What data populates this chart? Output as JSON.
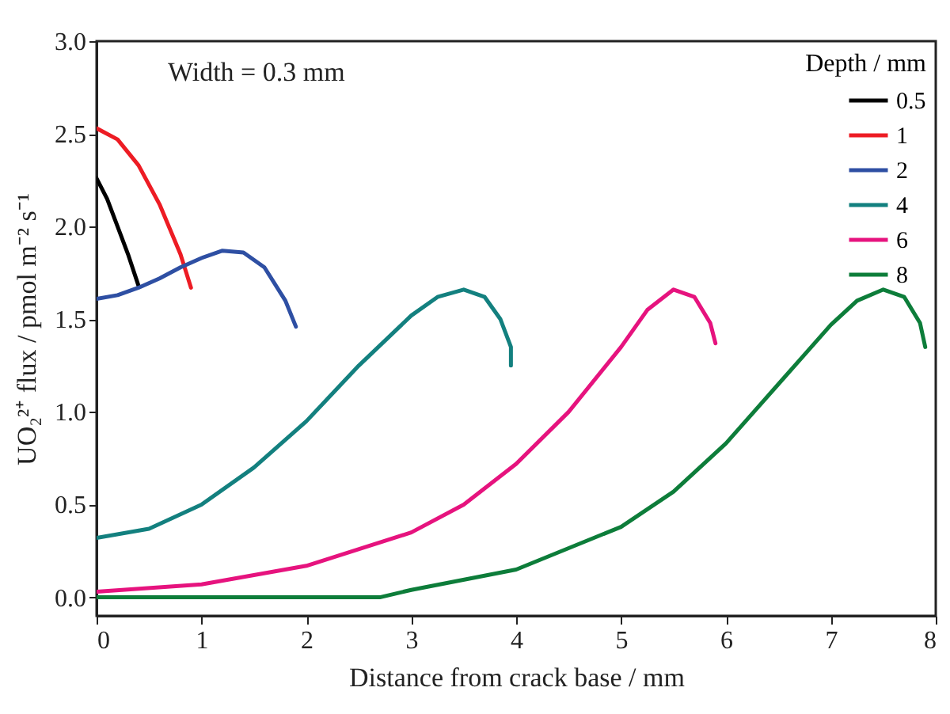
{
  "chart_data": {
    "type": "line",
    "xlabel": "Distance from crack base / mm",
    "ylabel": "UO₂²⁺ flux / pmol m⁻² s⁻¹",
    "legend_title": "Depth / mm",
    "annotations": [
      "Width = 0.3 mm"
    ],
    "xlim": [
      0,
      8
    ],
    "xticks": [
      0,
      1,
      2,
      3,
      4,
      5,
      6,
      7,
      8
    ],
    "ylim": [
      -0.1,
      3.0
    ],
    "yticks": [
      {
        "value": 0,
        "label": "0.0"
      },
      {
        "value": 0.5,
        "label": "0.5"
      },
      {
        "value": 1,
        "label": "1.0"
      },
      {
        "value": 1.5,
        "label": "1.5"
      },
      {
        "value": 2,
        "label": "2.0"
      },
      {
        "value": 2.5,
        "label": "2.5"
      },
      {
        "value": 3,
        "label": "3.0"
      }
    ],
    "grid": false,
    "legend": "top right",
    "series": [
      {
        "name": "0.5",
        "color": "#000000",
        "x": [
          0,
          0.1,
          0.2,
          0.3,
          0.4
        ],
        "values": [
          2.26,
          2.15,
          2.0,
          1.85,
          1.68
        ]
      },
      {
        "name": "1",
        "color": "#ed1c24",
        "x": [
          0,
          0.2,
          0.4,
          0.6,
          0.8,
          0.9
        ],
        "values": [
          2.53,
          2.47,
          2.33,
          2.12,
          1.85,
          1.67
        ]
      },
      {
        "name": "2",
        "color": "#2e4fa3",
        "x": [
          0,
          0.2,
          0.4,
          0.6,
          0.8,
          1.0,
          1.2,
          1.4,
          1.6,
          1.8,
          1.9
        ],
        "values": [
          1.61,
          1.63,
          1.67,
          1.72,
          1.78,
          1.83,
          1.87,
          1.86,
          1.78,
          1.6,
          1.46
        ]
      },
      {
        "name": "4",
        "color": "#13807f",
        "x": [
          0,
          0.5,
          1,
          1.5,
          2,
          2.5,
          3,
          3.25,
          3.5,
          3.7,
          3.85,
          3.95,
          3.95
        ],
        "values": [
          0.32,
          0.37,
          0.5,
          0.7,
          0.95,
          1.25,
          1.52,
          1.62,
          1.66,
          1.62,
          1.5,
          1.35,
          1.25
        ]
      },
      {
        "name": "6",
        "color": "#e6137e",
        "x": [
          0,
          1,
          2,
          3,
          3.5,
          4,
          4.5,
          5,
          5.25,
          5.5,
          5.7,
          5.85,
          5.9
        ],
        "values": [
          0.03,
          0.07,
          0.17,
          0.35,
          0.5,
          0.72,
          1.0,
          1.35,
          1.55,
          1.66,
          1.62,
          1.48,
          1.37
        ]
      },
      {
        "name": "8",
        "color": "#0d7d3a",
        "x": [
          0,
          2.7,
          3,
          4,
          5,
          5.5,
          6,
          6.5,
          7,
          7.25,
          7.5,
          7.7,
          7.85,
          7.9
        ],
        "values": [
          0,
          0,
          0.04,
          0.15,
          0.38,
          0.57,
          0.83,
          1.15,
          1.47,
          1.6,
          1.66,
          1.62,
          1.48,
          1.35
        ]
      }
    ]
  }
}
